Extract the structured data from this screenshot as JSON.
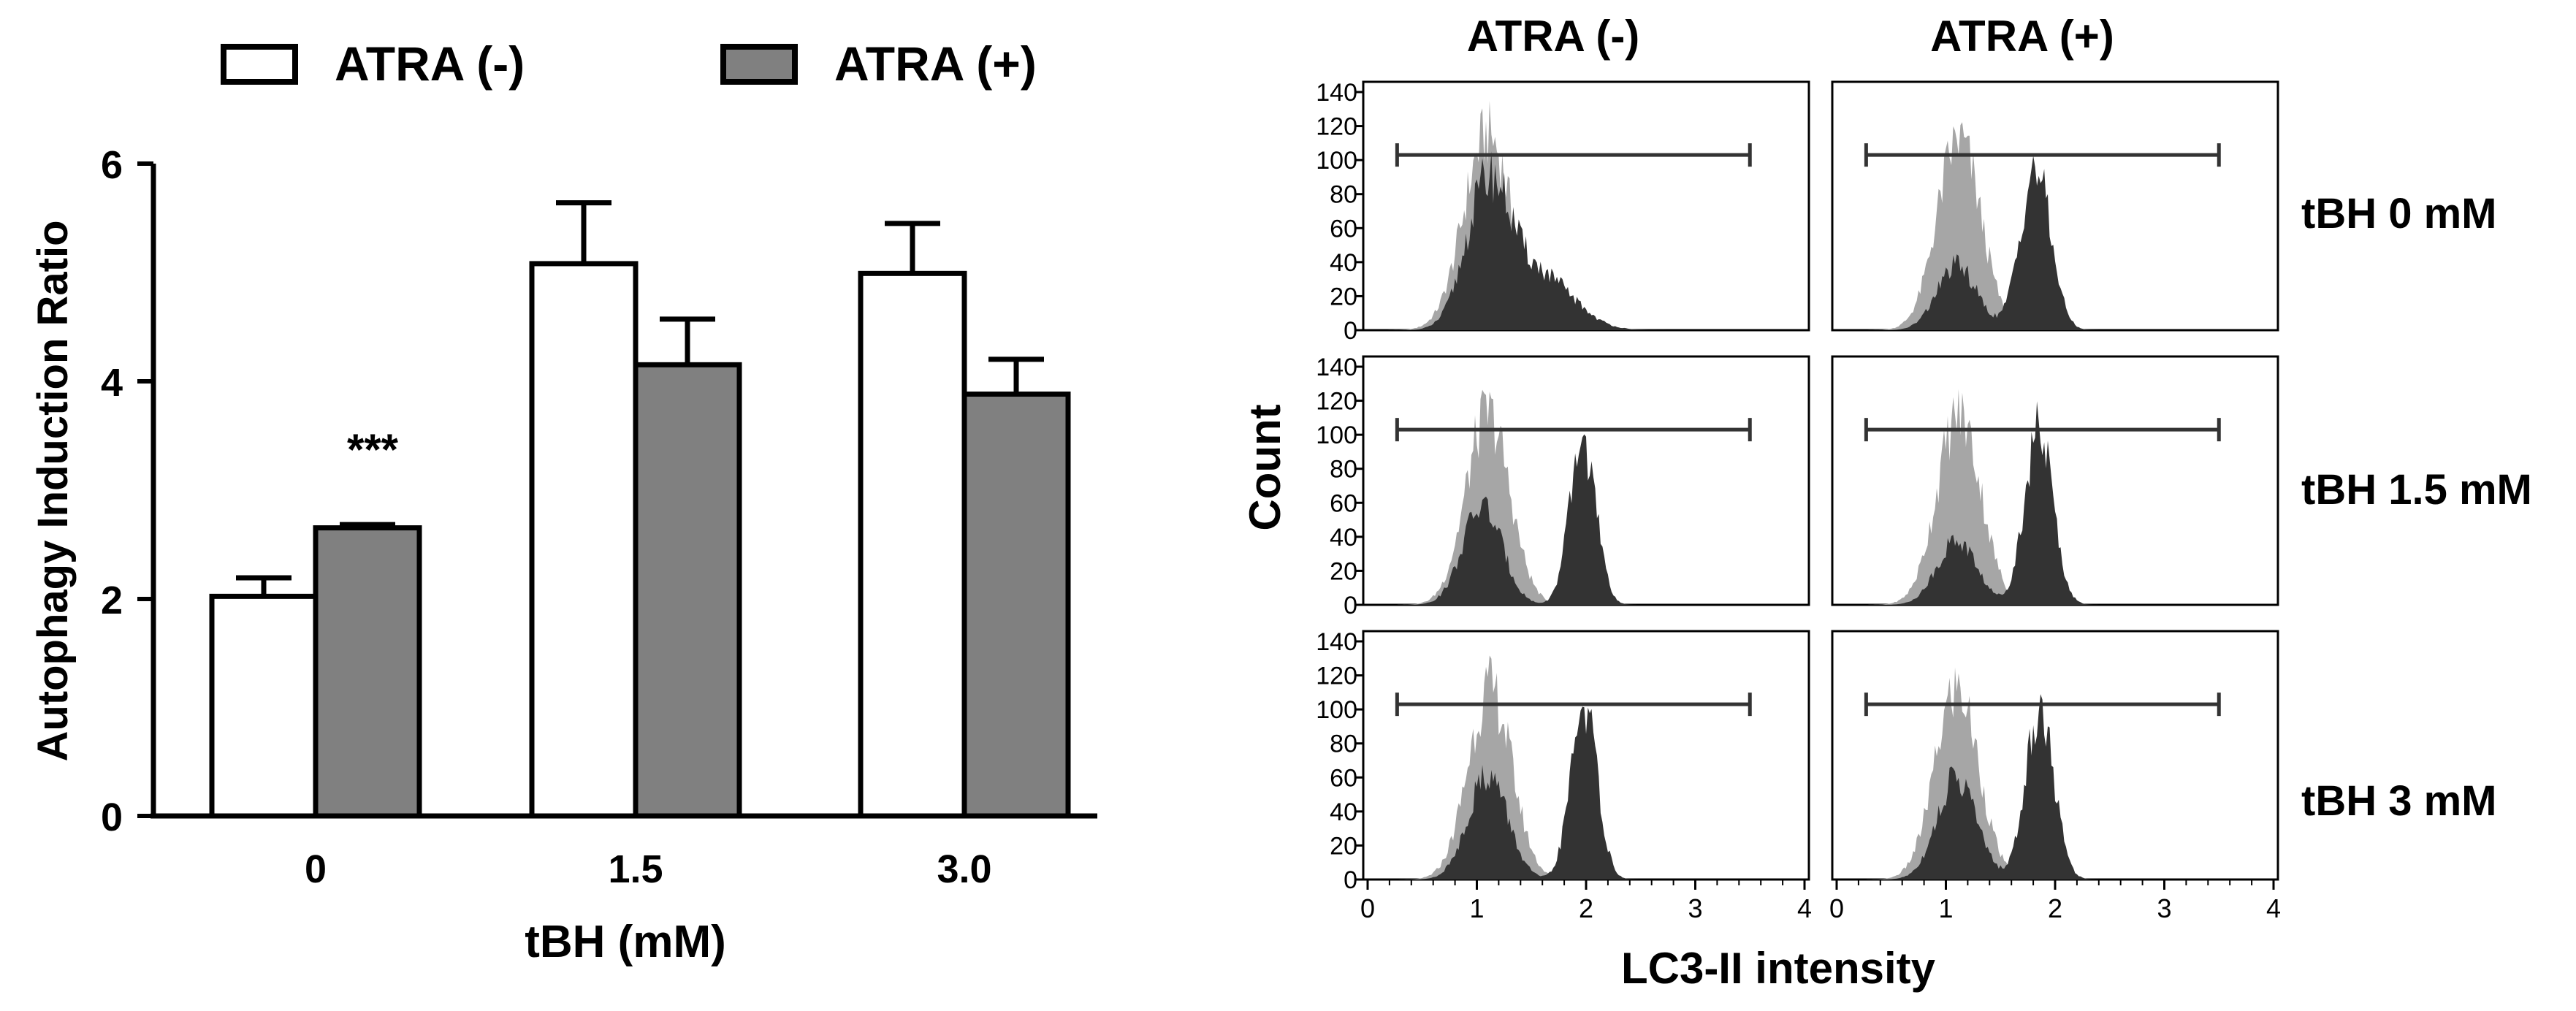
{
  "chart_data": [
    {
      "type": "bar",
      "title": "",
      "legend": [
        "ATRA (-)",
        "ATRA (+)"
      ],
      "legend_position": "top",
      "categories": [
        "0",
        "1.5",
        "3.0"
      ],
      "series": [
        {
          "name": "ATRA (-)",
          "color": "#ffffff",
          "values": [
            2.02,
            5.08,
            4.99
          ],
          "errors": [
            0.17,
            0.56,
            0.46
          ]
        },
        {
          "name": "ATRA (+)",
          "color": "#808080",
          "values": [
            2.65,
            4.15,
            3.88
          ],
          "errors": [
            0.03,
            0.42,
            0.32
          ]
        }
      ],
      "xlabel": "tBH (mM)",
      "ylabel": "Autophagy Induction Ratio",
      "ylim": [
        0,
        6
      ],
      "yticks": [
        "0",
        "2",
        "4",
        "6"
      ],
      "annotations": [
        {
          "text": "***",
          "category": "0",
          "series": "ATRA (+)"
        }
      ]
    },
    {
      "type": "area",
      "column_titles": [
        "ATRA (-)",
        "ATRA (+)"
      ],
      "row_labels": [
        "tBH 0 mM",
        "tBH 1.5 mM",
        "tBH 3 mM"
      ],
      "xlabel": "LC3-II intensity",
      "ylabel": "Count",
      "xlim": [
        0,
        4
      ],
      "ylim": [
        0,
        140
      ],
      "xticks": [
        "0",
        "1",
        "2",
        "3",
        "4"
      ],
      "yticks": [
        "0",
        "20",
        "40",
        "60",
        "80",
        "100",
        "120",
        "140"
      ],
      "gate": {
        "x1": 0.27,
        "x2": 3.5,
        "y": 103
      },
      "control_color": "#a6a6a6",
      "sample_color": "#333333",
      "panels": [
        {
          "row": 0,
          "col": 0,
          "control": {
            "center": 1.1,
            "width": 0.22,
            "height": 115
          },
          "sample": [
            {
              "center": 1.1,
              "width": 0.2,
              "height": 82
            },
            {
              "center": 1.58,
              "width": 0.3,
              "height": 32
            }
          ]
        },
        {
          "row": 0,
          "col": 1,
          "control": {
            "center": 1.12,
            "width": 0.2,
            "height": 112
          },
          "sample": [
            {
              "center": 1.1,
              "width": 0.18,
              "height": 38
            },
            {
              "center": 1.82,
              "width": 0.14,
              "height": 95
            }
          ]
        },
        {
          "row": 1,
          "col": 0,
          "control": {
            "center": 1.1,
            "width": 0.2,
            "height": 112
          },
          "sample": [
            {
              "center": 1.05,
              "width": 0.18,
              "height": 58
            },
            {
              "center": 1.97,
              "width": 0.12,
              "height": 96
            }
          ]
        },
        {
          "row": 1,
          "col": 1,
          "control": {
            "center": 1.12,
            "width": 0.2,
            "height": 112
          },
          "sample": [
            {
              "center": 1.1,
              "width": 0.18,
              "height": 38
            },
            {
              "center": 1.85,
              "width": 0.13,
              "height": 103
            }
          ]
        },
        {
          "row": 2,
          "col": 0,
          "control": {
            "center": 1.12,
            "width": 0.2,
            "height": 112
          },
          "sample": [
            {
              "center": 1.1,
              "width": 0.18,
              "height": 62
            },
            {
              "center": 1.98,
              "width": 0.12,
              "height": 103
            }
          ]
        },
        {
          "row": 2,
          "col": 1,
          "control": {
            "center": 1.1,
            "width": 0.2,
            "height": 112
          },
          "sample": [
            {
              "center": 1.1,
              "width": 0.18,
              "height": 60
            },
            {
              "center": 1.86,
              "width": 0.13,
              "height": 100
            }
          ]
        }
      ]
    }
  ]
}
